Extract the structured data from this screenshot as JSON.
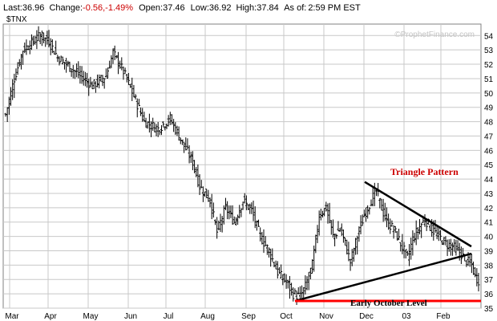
{
  "header": {
    "last_label": "Last:",
    "last_value": "36.96",
    "change_label": "Change:",
    "change_value": "-0.56",
    "change_pct": ",-1.49%",
    "open_label": "Open:",
    "open_value": "37.46",
    "low_label": "Low:",
    "low_value": "36.92",
    "high_label": "High:",
    "high_value": "37.84",
    "asof_label": "As of:",
    "asof_value": "2:59 PM EST"
  },
  "ticker": "$TNX",
  "watermark": "©ProphetFinance.com",
  "colors": {
    "negative": "#cc0000",
    "price": "#000000",
    "frame": "#808080",
    "grid": "#c8c8c8",
    "support": "#ff0000",
    "annotation": "#cc0000"
  },
  "chart_data": {
    "type": "ohlc",
    "title": "",
    "xlabel": "",
    "ylabel": "",
    "ylim": [
      35,
      54.8
    ],
    "y_ticks": [
      35,
      36,
      37,
      38,
      39,
      40,
      41,
      42,
      43,
      44,
      45,
      46,
      47,
      48,
      49,
      50,
      51,
      52,
      53,
      54
    ],
    "x_ticks": [
      "Mar",
      "Apr",
      "May",
      "Jun",
      "Jul",
      "Aug",
      "Sep",
      "Oct",
      "Nov",
      "Dec",
      "03",
      "Feb"
    ],
    "grid": true,
    "series": [
      {
        "close_keypoints": [
          [
            0,
            48.5
          ],
          [
            5,
            51
          ],
          [
            10,
            53
          ],
          [
            15,
            53.5
          ],
          [
            20,
            54
          ],
          [
            25,
            53.6
          ],
          [
            30,
            52.5
          ],
          [
            40,
            51.5
          ],
          [
            50,
            50.5
          ],
          [
            58,
            51.2
          ],
          [
            62,
            52.8
          ],
          [
            68,
            51.5
          ],
          [
            75,
            49.5
          ],
          [
            80,
            48
          ],
          [
            88,
            47.5
          ],
          [
            95,
            48.2
          ],
          [
            100,
            47
          ],
          [
            108,
            45.2
          ],
          [
            112,
            43.5
          ],
          [
            118,
            42.5
          ],
          [
            122,
            40.3
          ],
          [
            127,
            42
          ],
          [
            132,
            41
          ],
          [
            137,
            42.5
          ],
          [
            142,
            41.8
          ],
          [
            147,
            40
          ],
          [
            152,
            39
          ],
          [
            157,
            37.5
          ],
          [
            162,
            36.8
          ],
          [
            166,
            36
          ],
          [
            170,
            35.8
          ],
          [
            173,
            36.5
          ],
          [
            177,
            38
          ],
          [
            181,
            41.5
          ],
          [
            185,
            42
          ],
          [
            189,
            40
          ],
          [
            193,
            40.5
          ],
          [
            196,
            39.5
          ],
          [
            199,
            38.2
          ],
          [
            203,
            40
          ],
          [
            207,
            41.5
          ],
          [
            211,
            42.5
          ],
          [
            214,
            43.2
          ],
          [
            217,
            42
          ],
          [
            220,
            41
          ],
          [
            224,
            40.5
          ],
          [
            228,
            39.5
          ],
          [
            232,
            38.5
          ],
          [
            235,
            39.8
          ],
          [
            238,
            40.5
          ],
          [
            242,
            41.2
          ],
          [
            246,
            40.5
          ],
          [
            250,
            40
          ],
          [
            254,
            39.5
          ],
          [
            258,
            39.3
          ],
          [
            262,
            38.9
          ],
          [
            266,
            38.3
          ],
          [
            269,
            38
          ],
          [
            271,
            37.2
          ],
          [
            273,
            36.96
          ]
        ]
      }
    ],
    "annotations": [
      {
        "text": "Triangle Pattern"
      },
      {
        "text": "Early October Level"
      }
    ],
    "trendlines": [
      {
        "name": "upper",
        "from": [
          "Dec",
          43.8
        ],
        "to": [
          "Feb",
          39.3
        ]
      },
      {
        "name": "lower",
        "from": [
          "Oct",
          35.5
        ],
        "to": [
          "Feb",
          38.8
        ]
      },
      {
        "name": "support",
        "from": [
          "Oct",
          35.5
        ],
        "to": [
          "Feb",
          35.5
        ]
      }
    ]
  }
}
